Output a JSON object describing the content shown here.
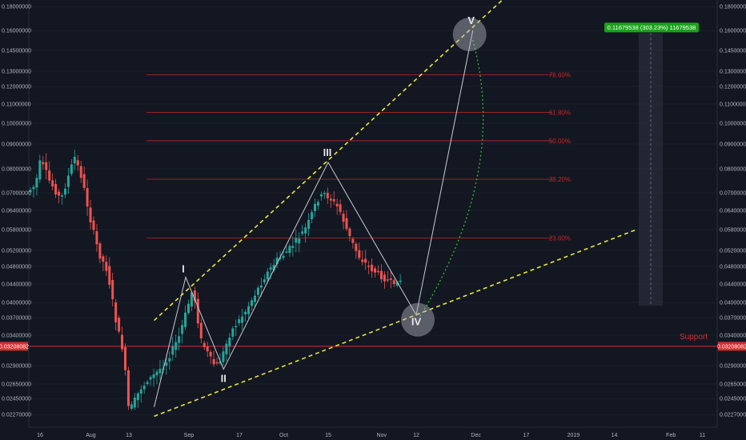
{
  "chart_data": {
    "type": "candlestick",
    "y_axis_labels": [
      "0.18000000",
      "0.16000000",
      "0.14500000",
      "0.13000000",
      "0.12000000",
      "0.11000000",
      "0.10000000",
      "0.09000000",
      "0.08000000",
      "0.07000000",
      "0.06400000",
      "0.05800000",
      "0.05200000",
      "0.04800000",
      "0.04400000",
      "0.04000000",
      "0.03700000",
      "0.03400000",
      "0.02900000",
      "0.02650000",
      "0.02450000",
      "0.02270000"
    ],
    "x_axis_labels": [
      "16",
      "Aug",
      "13",
      "Sep",
      "17",
      "Oct",
      "15",
      "Nov",
      "12",
      "Dec",
      "17",
      "2019",
      "14",
      "Feb",
      "11"
    ],
    "ylim": [
      0.021,
      0.19
    ],
    "y_scale": "log",
    "fib_levels": [
      {
        "label": "78.60%",
        "price": 0.1275
      },
      {
        "label": "61.80%",
        "price": 0.1055
      },
      {
        "label": "50.00%",
        "price": 0.0915
      },
      {
        "label": "38.20%",
        "price": 0.0755
      },
      {
        "label": "23.60%",
        "price": 0.0555
      }
    ],
    "support": {
      "label": "Support",
      "price": 0.03208082,
      "price_label": "0.03208082"
    },
    "waves": [
      {
        "label": "I",
        "date": "2018-08-31",
        "price": 0.0455
      },
      {
        "label": "II",
        "date": "2018-09-12",
        "price": 0.0285
      },
      {
        "label": "III",
        "date": "2018-10-15",
        "price": 0.0825
      },
      {
        "label": "IV",
        "date": "2018-11-12",
        "price": 0.0375
      },
      {
        "label": "V",
        "date": "2018-11-30",
        "price": 0.16
      }
    ],
    "channel": {
      "upper": [
        {
          "date": "2018-08-21",
          "price": 0.0365
        },
        {
          "date": "2018-12-17",
          "price": 0.182
        }
      ],
      "lower": [
        {
          "date": "2018-08-21",
          "price": 0.0225
        },
        {
          "date": "2019-01-21",
          "price": 0.058
        }
      ]
    },
    "projection_badge": "0.11679538 (303.23%) 11679538",
    "colors": {
      "background": "#131722",
      "up": "#26a69a",
      "down": "#ef5350",
      "fib": "#c22727",
      "channel": "#e8e83a",
      "projection": "#2ebd2e",
      "support": "#d32f2f",
      "badge": "#1aa31a"
    }
  }
}
